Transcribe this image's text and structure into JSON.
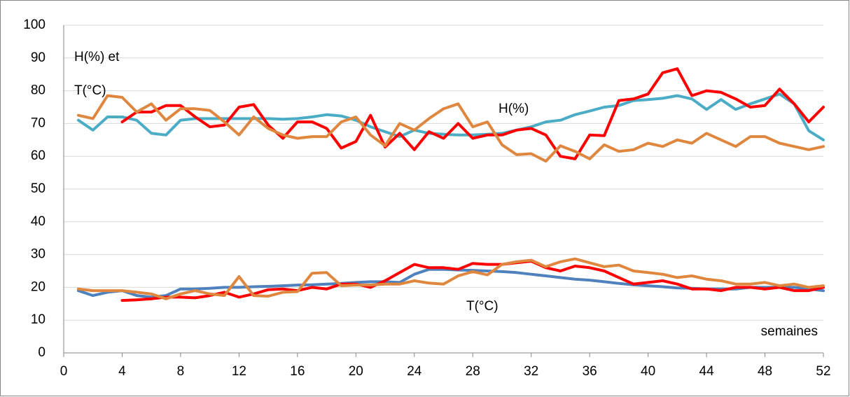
{
  "chart_data": {
    "type": "line",
    "annotations": [
      "H(%) et",
      "T(°C)",
      "H(%)",
      "T(°C)",
      "semaines"
    ],
    "x": [
      1,
      2,
      3,
      4,
      5,
      6,
      7,
      8,
      9,
      10,
      11,
      12,
      13,
      14,
      15,
      16,
      17,
      18,
      19,
      20,
      21,
      22,
      23,
      24,
      25,
      26,
      27,
      28,
      29,
      30,
      31,
      32,
      33,
      34,
      35,
      36,
      37,
      38,
      39,
      40,
      41,
      42,
      43,
      44,
      45,
      46,
      47,
      48,
      49,
      50,
      51,
      52
    ],
    "xlim": [
      0,
      52
    ],
    "xticks": [
      0,
      4,
      8,
      12,
      16,
      20,
      24,
      28,
      32,
      36,
      40,
      44,
      48,
      52
    ],
    "ylim": [
      0,
      100
    ],
    "yticks": [
      0,
      10,
      20,
      30,
      40,
      50,
      60,
      70,
      80,
      90,
      100
    ],
    "grid": true,
    "series": [
      {
        "color": "#4bacc6",
        "values": [
          71,
          68,
          72,
          72,
          71,
          67,
          66.5,
          71,
          71.5,
          71.5,
          71.5,
          71.5,
          71.5,
          71.5,
          71.3,
          71.5,
          72,
          72.7,
          72.3,
          71,
          69,
          67.5,
          66,
          68,
          67,
          66.7,
          66.5,
          66.5,
          66.7,
          67,
          68,
          69,
          70.5,
          71,
          72.7,
          73.8,
          75,
          75.5,
          77,
          77.3,
          77.7,
          78.5,
          77.5,
          74.3,
          77.3,
          74.3,
          76,
          77.5,
          79,
          76,
          67.8,
          65
        ]
      },
      {
        "color": "#ff0000",
        "values": [
          null,
          null,
          null,
          70.5,
          73.5,
          73.5,
          75.5,
          75.5,
          72,
          69,
          69.5,
          75,
          75.8,
          69.5,
          65.5,
          70.5,
          70.5,
          68.5,
          62.5,
          64.5,
          72.5,
          62.8,
          67,
          62,
          67.5,
          65.5,
          70,
          65.5,
          66.5,
          66.5,
          68,
          68.5,
          66.5,
          60,
          59.2,
          66.5,
          66.3,
          77,
          77.5,
          79,
          85.5,
          86.7,
          78.5,
          80,
          79.5,
          77.5,
          75,
          75.5,
          80.5,
          76,
          70.5,
          75
        ]
      },
      {
        "color": "#e0873f",
        "values": [
          72.5,
          71.5,
          78.5,
          78,
          73.5,
          76,
          71,
          74.5,
          74.5,
          74,
          70.5,
          66.5,
          72,
          68.5,
          66.5,
          65.5,
          66,
          66,
          70.5,
          72,
          66.5,
          63.2,
          70,
          68,
          71.5,
          74.5,
          76,
          69,
          70.5,
          63.5,
          60.5,
          60.8,
          58.5,
          63.2,
          61.5,
          59.2,
          63.5,
          61.5,
          62,
          64,
          63,
          65,
          64,
          67,
          65,
          63,
          66,
          66,
          64,
          63,
          62,
          63
        ]
      },
      {
        "color": "#4f81bd",
        "values": [
          19,
          17.5,
          18.5,
          19,
          17.5,
          17,
          17.5,
          19.5,
          19.5,
          19.7,
          20,
          20,
          20.2,
          20.3,
          20.5,
          20.7,
          20.8,
          21,
          21.2,
          21.5,
          21.7,
          21.7,
          21.5,
          24,
          25.5,
          25.5,
          25.3,
          25.2,
          25,
          24.8,
          24.5,
          24,
          23.5,
          23,
          22.5,
          22.2,
          21.7,
          21.2,
          20.8,
          20.5,
          20.2,
          19.8,
          19.7,
          19.5,
          19.5,
          19.5,
          20,
          20,
          20,
          20,
          19.5,
          19
        ]
      },
      {
        "color": "#ff0000",
        "values": [
          null,
          null,
          null,
          16,
          16.2,
          16.5,
          17,
          17,
          16.8,
          17.5,
          18.5,
          17,
          18,
          19.3,
          19.5,
          19,
          20,
          19.5,
          21,
          21,
          20,
          22,
          24.5,
          27,
          26,
          26,
          25.5,
          27.3,
          27,
          27,
          27.5,
          28,
          26,
          25,
          26.5,
          26,
          25,
          23,
          21,
          21.5,
          22,
          21,
          19.5,
          19.5,
          19,
          20,
          20,
          19.5,
          20,
          19,
          19,
          20
        ]
      },
      {
        "color": "#e0873f",
        "values": [
          19.5,
          19,
          19,
          19,
          18.5,
          18,
          16.5,
          18,
          19,
          18,
          17.5,
          23.3,
          17.5,
          17.3,
          18.5,
          18.7,
          24.3,
          24.5,
          20.5,
          20.7,
          20.7,
          21,
          21,
          22,
          21.3,
          21,
          23.5,
          24.8,
          23.8,
          27,
          27.8,
          28.3,
          26.3,
          27.8,
          28.7,
          27.5,
          26.3,
          26.8,
          25,
          24.5,
          24,
          23,
          23.5,
          22.5,
          22,
          21,
          21,
          21.5,
          20.5,
          21,
          20,
          20.5
        ]
      }
    ]
  }
}
